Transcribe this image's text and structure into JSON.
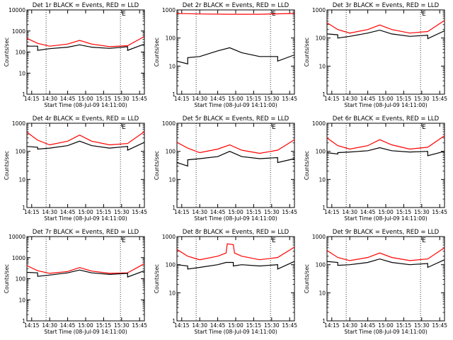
{
  "colors": {
    "background": "#ffffff",
    "events": "#000000",
    "lld": "#ff0000",
    "axes": "#000000"
  },
  "shared": {
    "xlabel": "Start Time (08-Jul-09 14:11:00)",
    "ylabel": "Counts/sec",
    "x_tick_labels": [
      "14:15",
      "14:30",
      "14:45",
      "15:00",
      "15:15",
      "15:30",
      "15:45"
    ],
    "y_tick_labels": [
      "1",
      "10",
      "100",
      "1000",
      "10000"
    ],
    "corner_marker": "E"
  },
  "chart_data": [
    {
      "type": "line",
      "title": "Det 1r BLACK = Events, RED = LLD",
      "xlim": [
        "14:11",
        "15:49"
      ],
      "ylim": [
        1,
        10000
      ],
      "yscale": "log",
      "xlabel": "Start Time (08-Jul-09 14:11:00)",
      "ylabel": "Counts/sec",
      "vlines": [
        "14:27",
        "15:29"
      ],
      "series": [
        {
          "name": "Events",
          "color": "#000000",
          "x": [
            "14:11",
            "14:20",
            "14:20",
            "14:30",
            "14:45",
            "14:55",
            "15:05",
            "15:20",
            "15:35",
            "15:35",
            "15:49"
          ],
          "y": [
            190,
            190,
            120,
            145,
            170,
            220,
            170,
            150,
            180,
            120,
            240
          ]
        },
        {
          "name": "LLD",
          "color": "#ff0000",
          "x": [
            "14:11",
            "14:20",
            "14:30",
            "14:45",
            "14:55",
            "15:05",
            "15:20",
            "15:35",
            "15:49"
          ],
          "y": [
            450,
            260,
            190,
            240,
            360,
            240,
            180,
            200,
            550
          ]
        }
      ]
    },
    {
      "type": "line",
      "title": "Det 2r BLACK = Events, RED = LLD",
      "xlim": [
        "14:11",
        "15:49"
      ],
      "ylim": [
        1,
        1000
      ],
      "yscale": "log",
      "xlabel": "Start Time (08-Jul-09 14:11:00)",
      "ylabel": "Counts/sec",
      "vlines": [
        "14:27",
        "15:29"
      ],
      "series": [
        {
          "name": "Events",
          "color": "#000000",
          "x": [
            "14:11",
            "14:20",
            "14:20",
            "14:30",
            "14:45",
            "14:55",
            "15:05",
            "15:20",
            "15:35",
            "15:35",
            "15:49"
          ],
          "y": [
            15,
            12,
            20,
            22,
            35,
            45,
            30,
            22,
            22,
            15,
            25
          ]
        },
        {
          "name": "LLD",
          "color": "#ff0000",
          "x": [
            "14:11",
            "14:30",
            "14:55",
            "15:20",
            "15:49"
          ],
          "y": [
            750,
            720,
            700,
            700,
            750
          ]
        }
      ]
    },
    {
      "type": "line",
      "title": "Det 3r BLACK = Events, RED = LLD",
      "xlim": [
        "14:11",
        "15:49"
      ],
      "ylim": [
        1,
        1000
      ],
      "yscale": "log",
      "xlabel": "Start Time (08-Jul-09 14:11:00)",
      "ylabel": "Counts/sec",
      "vlines": [
        "14:27",
        "15:29"
      ],
      "series": [
        {
          "name": "Events",
          "color": "#000000",
          "x": [
            "14:11",
            "14:20",
            "14:20",
            "14:30",
            "14:45",
            "14:55",
            "15:05",
            "15:20",
            "15:35",
            "15:35",
            "15:49"
          ],
          "y": [
            140,
            130,
            100,
            115,
            150,
            190,
            140,
            115,
            125,
            95,
            180
          ]
        },
        {
          "name": "LLD",
          "color": "#ff0000",
          "x": [
            "14:11",
            "14:20",
            "14:30",
            "14:45",
            "14:55",
            "15:05",
            "15:20",
            "15:35",
            "15:49"
          ],
          "y": [
            350,
            200,
            150,
            200,
            290,
            200,
            150,
            170,
            420
          ]
        }
      ]
    },
    {
      "type": "line",
      "title": "Det 4r BLACK = Events, RED = LLD",
      "xlim": [
        "14:11",
        "15:49"
      ],
      "ylim": [
        1,
        1000
      ],
      "yscale": "log",
      "xlabel": "Start Time (08-Jul-09 14:11:00)",
      "ylabel": "Counts/sec",
      "vlines": [
        "14:27",
        "15:29"
      ],
      "series": [
        {
          "name": "Events",
          "color": "#000000",
          "x": [
            "14:11",
            "14:20",
            "14:20",
            "14:30",
            "14:45",
            "14:55",
            "15:05",
            "15:20",
            "15:35",
            "15:35",
            "15:49"
          ],
          "y": [
            150,
            140,
            120,
            130,
            160,
            230,
            160,
            130,
            150,
            110,
            210
          ]
        },
        {
          "name": "LLD",
          "color": "#ff0000",
          "x": [
            "14:11",
            "14:20",
            "14:30",
            "14:45",
            "14:55",
            "15:05",
            "15:20",
            "15:35",
            "15:49"
          ],
          "y": [
            480,
            250,
            170,
            230,
            380,
            230,
            170,
            190,
            500
          ]
        }
      ]
    },
    {
      "type": "line",
      "title": "Det 5r BLACK = Events, RED = LLD",
      "xlim": [
        "14:11",
        "15:49"
      ],
      "ylim": [
        1,
        1000
      ],
      "yscale": "log",
      "xlabel": "Start Time (08-Jul-09 14:11:00)",
      "ylabel": "Counts/sec",
      "vlines": [
        "14:27",
        "15:29"
      ],
      "series": [
        {
          "name": "Events",
          "color": "#000000",
          "x": [
            "14:11",
            "14:20",
            "14:20",
            "14:30",
            "14:45",
            "14:55",
            "15:05",
            "15:20",
            "15:35",
            "15:35",
            "15:49"
          ],
          "y": [
            40,
            30,
            50,
            55,
            65,
            100,
            65,
            55,
            60,
            40,
            55
          ]
        },
        {
          "name": "LLD",
          "color": "#ff0000",
          "x": [
            "14:11",
            "14:20",
            "14:30",
            "14:45",
            "14:55",
            "15:05",
            "15:20",
            "15:35",
            "15:49"
          ],
          "y": [
            210,
            130,
            90,
            120,
            170,
            110,
            85,
            110,
            260
          ]
        }
      ]
    },
    {
      "type": "line",
      "title": "Det 6r BLACK = Events, RED = LLD",
      "xlim": [
        "14:11",
        "15:49"
      ],
      "ylim": [
        1,
        1000
      ],
      "yscale": "log",
      "xlabel": "Start Time (08-Jul-09 14:11:00)",
      "ylabel": "Counts/sec",
      "vlines": [
        "14:27",
        "15:29"
      ],
      "series": [
        {
          "name": "Events",
          "color": "#000000",
          "x": [
            "14:11",
            "14:20",
            "14:20",
            "14:30",
            "14:45",
            "14:55",
            "15:05",
            "15:20",
            "15:35",
            "15:35",
            "15:49"
          ],
          "y": [
            90,
            80,
            90,
            95,
            105,
            135,
            105,
            95,
            100,
            70,
            100
          ]
        },
        {
          "name": "LLD",
          "color": "#ff0000",
          "x": [
            "14:11",
            "14:20",
            "14:30",
            "14:45",
            "14:55",
            "15:05",
            "15:20",
            "15:35",
            "15:49"
          ],
          "y": [
            300,
            160,
            120,
            160,
            260,
            170,
            120,
            140,
            360
          ]
        }
      ]
    },
    {
      "type": "line",
      "title": "Det 7r BLACK = Events, RED = LLD",
      "xlim": [
        "14:11",
        "15:49"
      ],
      "ylim": [
        1,
        10000
      ],
      "yscale": "log",
      "xlabel": "Start Time (08-Jul-09 14:11:00)",
      "ylabel": "Counts/sec",
      "vlines": [
        "14:27",
        "15:29"
      ],
      "series": [
        {
          "name": "Events",
          "color": "#000000",
          "x": [
            "14:11",
            "14:20",
            "14:20",
            "14:30",
            "14:45",
            "14:55",
            "15:05",
            "15:20",
            "15:35",
            "15:35",
            "15:49"
          ],
          "y": [
            200,
            190,
            130,
            150,
            190,
            260,
            190,
            160,
            180,
            120,
            240
          ]
        },
        {
          "name": "LLD",
          "color": "#ff0000",
          "x": [
            "14:11",
            "14:20",
            "14:30",
            "14:45",
            "14:55",
            "15:05",
            "15:20",
            "15:35",
            "15:49"
          ],
          "y": [
            420,
            240,
            180,
            220,
            340,
            230,
            180,
            190,
            520
          ]
        }
      ]
    },
    {
      "type": "line",
      "title": "Det 8r BLACK = Events, RED = LLD",
      "xlim": [
        "14:11",
        "15:49"
      ],
      "ylim": [
        1,
        1000
      ],
      "yscale": "log",
      "xlabel": "Start Time (08-Jul-09 14:11:00)",
      "ylabel": "Counts/sec",
      "vlines": [
        "14:27",
        "15:29"
      ],
      "series": [
        {
          "name": "Events",
          "color": "#000000",
          "x": [
            "14:11",
            "14:20",
            "14:20",
            "14:30",
            "14:45",
            "14:52",
            "14:52",
            "14:58",
            "14:58",
            "15:05",
            "15:20",
            "15:35",
            "15:35",
            "15:49"
          ],
          "y": [
            100,
            90,
            70,
            80,
            100,
            120,
            120,
            120,
            90,
            100,
            90,
            100,
            70,
            130
          ]
        },
        {
          "name": "LLD",
          "color": "#ff0000",
          "x": [
            "14:11",
            "14:20",
            "14:30",
            "14:45",
            "14:52",
            "14:53",
            "14:58",
            "14:59",
            "15:05",
            "15:20",
            "15:35",
            "15:49"
          ],
          "y": [
            350,
            200,
            150,
            200,
            260,
            550,
            520,
            260,
            200,
            150,
            180,
            420
          ]
        }
      ]
    },
    {
      "type": "line",
      "title": "Det 9r BLACK = Events, RED = LLD",
      "xlim": [
        "14:11",
        "15:49"
      ],
      "ylim": [
        1,
        1000
      ],
      "yscale": "log",
      "xlabel": "Start Time (08-Jul-09 14:11:00)",
      "ylabel": "Counts/sec",
      "vlines": [
        "14:27",
        "15:29"
      ],
      "series": [
        {
          "name": "Events",
          "color": "#000000",
          "x": [
            "14:11",
            "14:20",
            "14:20",
            "14:30",
            "14:45",
            "14:55",
            "15:05",
            "15:20",
            "15:35",
            "15:35",
            "15:49"
          ],
          "y": [
            130,
            120,
            95,
            100,
            120,
            160,
            120,
            100,
            110,
            80,
            150
          ]
        },
        {
          "name": "LLD",
          "color": "#ff0000",
          "x": [
            "14:11",
            "14:20",
            "14:30",
            "14:45",
            "14:55",
            "15:05",
            "15:20",
            "15:35",
            "15:49"
          ],
          "y": [
            320,
            180,
            140,
            180,
            260,
            180,
            140,
            160,
            400
          ]
        }
      ]
    }
  ]
}
